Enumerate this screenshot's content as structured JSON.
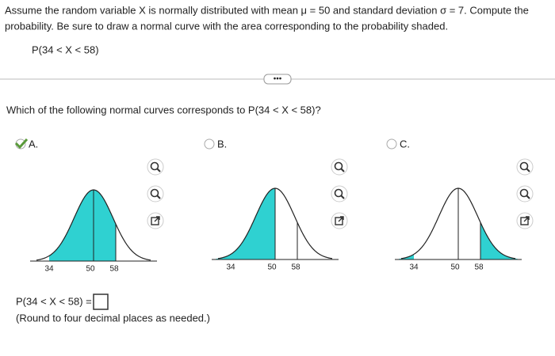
{
  "problem": {
    "text_line1": "Assume the random variable X is normally distributed with mean μ = 50 and standard deviation σ = 7. Compute the",
    "text_line2": "probability. Be sure to draw a normal curve with the area corresponding to the probability shaded.",
    "expression": "P(34 < X < 58)"
  },
  "question": "Which of the following normal curves corresponds to P(34 < X < 58)?",
  "options": [
    {
      "label": "A.",
      "ticks": [
        "34",
        "50",
        "58"
      ],
      "selected": true
    },
    {
      "label": "B.",
      "ticks": [
        "34",
        "50",
        "58"
      ],
      "selected": false
    },
    {
      "label": "C.",
      "ticks": [
        "34",
        "50",
        "58"
      ],
      "selected": false
    }
  ],
  "answer": {
    "prompt": "P(34 < X < 58) =",
    "note": "(Round to four decimal places as needed.)"
  }
}
